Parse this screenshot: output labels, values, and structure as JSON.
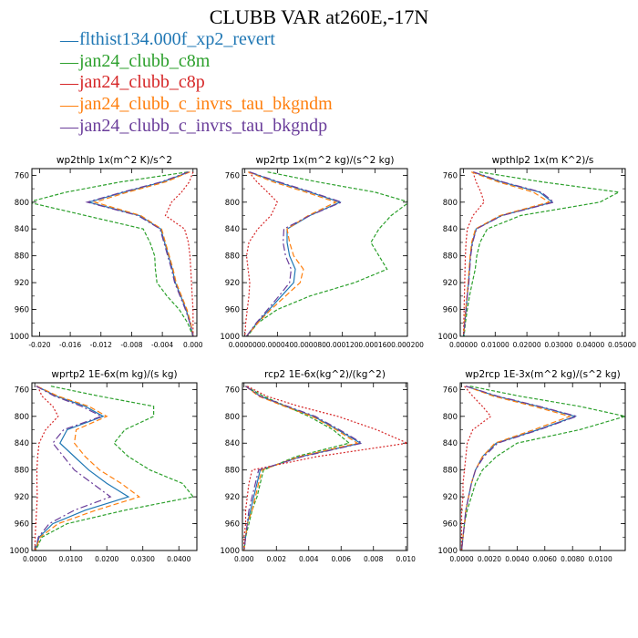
{
  "figure": {
    "title": "CLUBB VAR at260E,-17N",
    "legend": [
      {
        "label": "flthist134.000f_xp2_revert",
        "color": "#1f77b4"
      },
      {
        "label": "jan24_clubb_c8m",
        "color": "#2ca02c"
      },
      {
        "label": "jan24_clubb_c8p",
        "color": "#d62728"
      },
      {
        "label": "jan24_clubb_c_invrs_tau_bkgndm",
        "color": "#ff7f0e"
      },
      {
        "label": "jan24_clubb_c_invrs_tau_bkgndp",
        "color": "#6a3d9a"
      }
    ]
  },
  "chart_data": [
    {
      "type": "line",
      "title": "wp2thlp   1x(m^2 K)/s^2",
      "ylim": [
        1000,
        750
      ],
      "yticks": [
        760,
        800,
        840,
        880,
        920,
        960,
        1000
      ],
      "xlim": [
        -0.021,
        0.0005
      ],
      "xticks": [
        -0.02,
        -0.016,
        -0.012,
        -0.008,
        -0.004,
        0.0
      ],
      "xtick_labels": [
        "-0.020",
        "-0.016",
        "-0.012",
        "-0.008",
        "-0.004",
        "0.000"
      ],
      "y": [
        755,
        770,
        785,
        800,
        820,
        840,
        860,
        880,
        900,
        920,
        940,
        960,
        980,
        1000
      ],
      "series": [
        {
          "color": "#1f77b4",
          "dash": "none",
          "values": [
            -0.0005,
            -0.004,
            -0.009,
            -0.0136,
            -0.007,
            -0.0042,
            -0.0037,
            -0.0032,
            -0.0027,
            -0.0023,
            -0.0016,
            -0.0009,
            -0.0004,
            0.0
          ]
        },
        {
          "color": "#2ca02c",
          "dash": "4,2",
          "values": [
            -0.0007,
            -0.0095,
            -0.0165,
            -0.0215,
            -0.014,
            -0.0065,
            -0.0056,
            -0.005,
            -0.0049,
            -0.0047,
            -0.0034,
            -0.0018,
            -0.0007,
            0.0
          ]
        },
        {
          "color": "#d62728",
          "dash": "2,2",
          "values": [
            0.0,
            -0.0005,
            -0.0015,
            -0.0028,
            -0.0036,
            -0.0011,
            -0.0006,
            -0.0004,
            -0.0003,
            -0.0002,
            -0.0001,
            0.0,
            0.0,
            0.0
          ]
        },
        {
          "color": "#ff7f0e",
          "dash": "6,3",
          "values": [
            -0.0004,
            -0.0036,
            -0.0085,
            -0.0128,
            -0.0068,
            -0.0041,
            -0.0036,
            -0.0031,
            -0.0026,
            -0.0022,
            -0.0015,
            -0.0008,
            -0.0003,
            0.0
          ]
        },
        {
          "color": "#6a3d9a",
          "dash": "8,3,2,3",
          "values": [
            -0.0006,
            -0.0042,
            -0.0092,
            -0.0138,
            -0.0072,
            -0.0043,
            -0.0038,
            -0.0033,
            -0.0028,
            -0.0024,
            -0.0017,
            -0.001,
            -0.0004,
            0.0
          ]
        }
      ]
    },
    {
      "type": "line",
      "title": "wp2rtp   1x(m^2 kg)/(s^2 kg)",
      "ylim": [
        1000,
        750
      ],
      "yticks": [
        760,
        800,
        840,
        880,
        920,
        960,
        1000
      ],
      "xlim": [
        -3e-06,
        0.0002
      ],
      "xticks": [
        0.0,
        4e-05,
        8e-05,
        0.00012,
        0.00016,
        0.0002
      ],
      "xtick_labels": [
        "0.000000",
        "0.000040",
        "0.000080",
        "0.000120",
        "0.000160",
        "0.000200"
      ],
      "y": [
        755,
        770,
        785,
        800,
        820,
        840,
        860,
        880,
        900,
        920,
        940,
        960,
        980,
        1000
      ],
      "series": [
        {
          "color": "#1f77b4",
          "dash": "none",
          "values": [
            5e-06,
            4e-05,
            8e-05,
            0.000117,
            8e-05,
            5.2e-05,
            5.2e-05,
            5.5e-05,
            6.2e-05,
            6e-05,
            4.5e-05,
            3e-05,
            1.5e-05,
            2e-06
          ]
        },
        {
          "color": "#2ca02c",
          "dash": "4,2",
          "values": [
            2.8e-05,
            9e-05,
            0.00016,
            0.000202,
            0.00018,
            0.000165,
            0.000155,
            0.000165,
            0.000175,
            0.000135,
            8e-05,
            4e-05,
            1.6e-05,
            3e-06
          ]
        },
        {
          "color": "#d62728",
          "dash": "2,2",
          "values": [
            5e-06,
            1.5e-05,
            2.8e-05,
            4e-05,
            3.2e-05,
            1.6e-05,
            5e-06,
            2e-06,
            4e-06,
            6e-06,
            5e-06,
            3e-06,
            1e-06,
            0.0
          ]
        },
        {
          "color": "#ff7f0e",
          "dash": "6,3",
          "values": [
            4e-06,
            3.5e-05,
            7.5e-05,
            0.000112,
            7.8e-05,
            5.2e-05,
            5.5e-05,
            6e-05,
            7.2e-05,
            6.8e-05,
            5e-05,
            3.2e-05,
            1.6e-05,
            2e-06
          ]
        },
        {
          "color": "#6a3d9a",
          "dash": "8,3,2,3",
          "values": [
            6e-06,
            4.2e-05,
            8.2e-05,
            0.000119,
            8e-05,
            4.8e-05,
            4.7e-05,
            5e-05,
            5.7e-05,
            5.5e-05,
            4.2e-05,
            2.8e-05,
            1.4e-05,
            2e-06
          ]
        }
      ]
    },
    {
      "type": "line",
      "title": "wpthlp2   1x(m K^2)/s",
      "ylim": [
        1000,
        750
      ],
      "yticks": [
        760,
        800,
        840,
        880,
        920,
        960,
        1000
      ],
      "xlim": [
        -0.001,
        0.051
      ],
      "xticks": [
        0.0,
        0.01,
        0.02,
        0.03,
        0.04,
        0.05
      ],
      "xtick_labels": [
        "0.00000",
        "0.01000",
        "0.02000",
        "0.03000",
        "0.04000",
        "0.05000"
      ],
      "y": [
        755,
        770,
        785,
        800,
        820,
        840,
        860,
        880,
        900,
        920,
        940,
        960,
        980,
        1000
      ],
      "series": [
        {
          "color": "#1f77b4",
          "dash": "none",
          "values": [
            0.003,
            0.012,
            0.024,
            0.028,
            0.012,
            0.004,
            0.0028,
            0.0022,
            0.0019,
            0.0016,
            0.0012,
            0.0008,
            0.0004,
            0.0001
          ]
        },
        {
          "color": "#2ca02c",
          "dash": "4,2",
          "values": [
            0.005,
            0.025,
            0.049,
            0.043,
            0.018,
            0.0075,
            0.0052,
            0.0042,
            0.0037,
            0.0028,
            0.0019,
            0.0012,
            0.0006,
            0.0002
          ]
        },
        {
          "color": "#d62728",
          "dash": "2,2",
          "values": [
            0.003,
            0.004,
            0.0055,
            0.0065,
            0.003,
            0.0012,
            0.0008,
            0.0006,
            0.0005,
            0.0004,
            0.0003,
            0.0002,
            0.0001,
            0.0
          ]
        },
        {
          "color": "#ff7f0e",
          "dash": "6,3",
          "values": [
            0.0025,
            0.011,
            0.022,
            0.027,
            0.0115,
            0.0038,
            0.0026,
            0.0021,
            0.0018,
            0.0015,
            0.0011,
            0.0007,
            0.0003,
            0.0001
          ]
        },
        {
          "color": "#6a3d9a",
          "dash": "8,3,2,3",
          "values": [
            0.0032,
            0.0125,
            0.0245,
            0.0285,
            0.0122,
            0.0041,
            0.0029,
            0.0023,
            0.002,
            0.0017,
            0.0012,
            0.0008,
            0.0004,
            0.0001
          ]
        }
      ]
    },
    {
      "type": "line",
      "title": "wprtp2   1E-6x(m kg)/(s kg)",
      "ylim": [
        1000,
        750
      ],
      "yticks": [
        760,
        800,
        840,
        880,
        920,
        960,
        1000
      ],
      "xlim": [
        -0.0008,
        0.045
      ],
      "xticks": [
        0.0,
        0.01,
        0.02,
        0.03,
        0.04
      ],
      "xtick_labels": [
        "0.0000",
        "0.0100",
        "0.0200",
        "0.0300",
        "0.0400"
      ],
      "y": [
        755,
        770,
        785,
        800,
        820,
        840,
        860,
        880,
        900,
        920,
        940,
        960,
        980,
        1000
      ],
      "series": [
        {
          "color": "#1f77b4",
          "dash": "none",
          "values": [
            0.0005,
            0.006,
            0.014,
            0.019,
            0.009,
            0.007,
            0.011,
            0.015,
            0.02,
            0.026,
            0.014,
            0.005,
            0.0012,
            0.0001
          ]
        },
        {
          "color": "#2ca02c",
          "dash": "4,2",
          "values": [
            0.0045,
            0.018,
            0.033,
            0.033,
            0.025,
            0.022,
            0.026,
            0.032,
            0.041,
            0.044,
            0.025,
            0.009,
            0.002,
            0.0002
          ]
        },
        {
          "color": "#d62728",
          "dash": "2,2",
          "values": [
            0.0008,
            0.002,
            0.005,
            0.0065,
            0.003,
            0.0012,
            0.0008,
            0.0006,
            0.0006,
            0.0007,
            0.0005,
            0.0003,
            0.0001,
            0.0
          ]
        },
        {
          "color": "#ff7f0e",
          "dash": "6,3",
          "values": [
            0.0006,
            0.0065,
            0.015,
            0.02,
            0.0115,
            0.011,
            0.014,
            0.018,
            0.024,
            0.029,
            0.017,
            0.0065,
            0.0015,
            0.0001
          ]
        },
        {
          "color": "#6a3d9a",
          "dash": "8,3,2,3",
          "values": [
            0.0004,
            0.0055,
            0.013,
            0.0185,
            0.008,
            0.005,
            0.008,
            0.011,
            0.016,
            0.021,
            0.011,
            0.004,
            0.001,
            0.0001
          ]
        }
      ]
    },
    {
      "type": "line",
      "title": "rcp2   1E-6x(kg^2)/(kg^2)",
      "ylim": [
        1000,
        750
      ],
      "yticks": [
        760,
        800,
        840,
        880,
        920,
        960,
        1000
      ],
      "xlim": [
        -0.0001,
        0.0101
      ],
      "xticks": [
        0.0,
        0.002,
        0.004,
        0.006,
        0.008,
        0.01
      ],
      "xtick_labels": [
        "0.000",
        "0.002",
        "0.004",
        "0.006",
        "0.008",
        "0.010"
      ],
      "y": [
        755,
        770,
        785,
        800,
        820,
        840,
        860,
        880,
        900,
        920,
        940,
        960,
        980,
        1000
      ],
      "series": [
        {
          "color": "#1f77b4",
          "dash": "none",
          "values": [
            0.0001,
            0.001,
            0.0026,
            0.0043,
            0.0058,
            0.0072,
            0.0035,
            0.001,
            0.0008,
            0.0006,
            0.0004,
            0.0002,
            0.0001,
            0.0
          ]
        },
        {
          "color": "#2ca02c",
          "dash": "4,2",
          "values": [
            0.0001,
            0.0012,
            0.0026,
            0.004,
            0.0055,
            0.0065,
            0.0032,
            0.0012,
            0.001,
            0.0008,
            0.0005,
            0.0003,
            0.0001,
            0.0
          ]
        },
        {
          "color": "#d62728",
          "dash": "2,2",
          "values": [
            0.0002,
            0.0014,
            0.0034,
            0.0058,
            0.0082,
            0.0101,
            0.0045,
            0.0005,
            0.0003,
            0.0002,
            0.0001,
            0.0001,
            0.0,
            0.0
          ]
        },
        {
          "color": "#ff7f0e",
          "dash": "6,3",
          "values": [
            0.0001,
            0.0009,
            0.0025,
            0.0042,
            0.0057,
            0.007,
            0.0034,
            0.0011,
            0.0009,
            0.0007,
            0.0005,
            0.0002,
            0.0001,
            0.0
          ]
        },
        {
          "color": "#6a3d9a",
          "dash": "8,3,2,3",
          "values": [
            0.0001,
            0.001,
            0.0027,
            0.0044,
            0.0059,
            0.0073,
            0.0036,
            0.0009,
            0.0007,
            0.0005,
            0.0003,
            0.0002,
            0.0001,
            0.0
          ]
        }
      ]
    },
    {
      "type": "line",
      "title": "wp2rcp   1E-3x(m^2 kg)/(s^2 kg)",
      "ylim": [
        1000,
        750
      ],
      "yticks": [
        760,
        800,
        840,
        880,
        920,
        960,
        1000
      ],
      "xlim": [
        -0.0001,
        0.0118
      ],
      "xticks": [
        0.0,
        0.002,
        0.004,
        0.006,
        0.008,
        0.01
      ],
      "xtick_labels": [
        "0.0000",
        "0.0020",
        "0.0040",
        "0.0060",
        "0.0080",
        "0.0100"
      ],
      "y": [
        755,
        770,
        785,
        800,
        820,
        840,
        860,
        880,
        900,
        920,
        940,
        960,
        980,
        1000
      ],
      "series": [
        {
          "color": "#1f77b4",
          "dash": "none",
          "values": [
            0.0003,
            0.0025,
            0.0055,
            0.0082,
            0.0055,
            0.0025,
            0.0015,
            0.001,
            0.0007,
            0.0005,
            0.0003,
            0.0002,
            0.0001,
            0.0
          ]
        },
        {
          "color": "#2ca02c",
          "dash": "4,2",
          "values": [
            0.0006,
            0.0042,
            0.0085,
            0.0118,
            0.0085,
            0.004,
            0.0025,
            0.0015,
            0.001,
            0.0007,
            0.0004,
            0.0002,
            0.0001,
            0.0
          ]
        },
        {
          "color": "#d62728",
          "dash": "2,2",
          "values": [
            0.0002,
            0.0008,
            0.0015,
            0.0021,
            0.0008,
            0.0004,
            0.0003,
            0.0002,
            0.0001,
            0.0001,
            0.0,
            0.0,
            0.0,
            0.0
          ]
        },
        {
          "color": "#ff7f0e",
          "dash": "6,3",
          "values": [
            0.0003,
            0.0023,
            0.0052,
            0.0078,
            0.0052,
            0.0024,
            0.0015,
            0.001,
            0.0007,
            0.0005,
            0.0003,
            0.0002,
            0.0001,
            0.0
          ]
        },
        {
          "color": "#6a3d9a",
          "dash": "8,3,2,3",
          "values": [
            0.0003,
            0.0026,
            0.0056,
            0.0083,
            0.0056,
            0.0026,
            0.0016,
            0.001,
            0.0007,
            0.0005,
            0.0003,
            0.0002,
            0.0001,
            0.0
          ]
        }
      ]
    }
  ]
}
